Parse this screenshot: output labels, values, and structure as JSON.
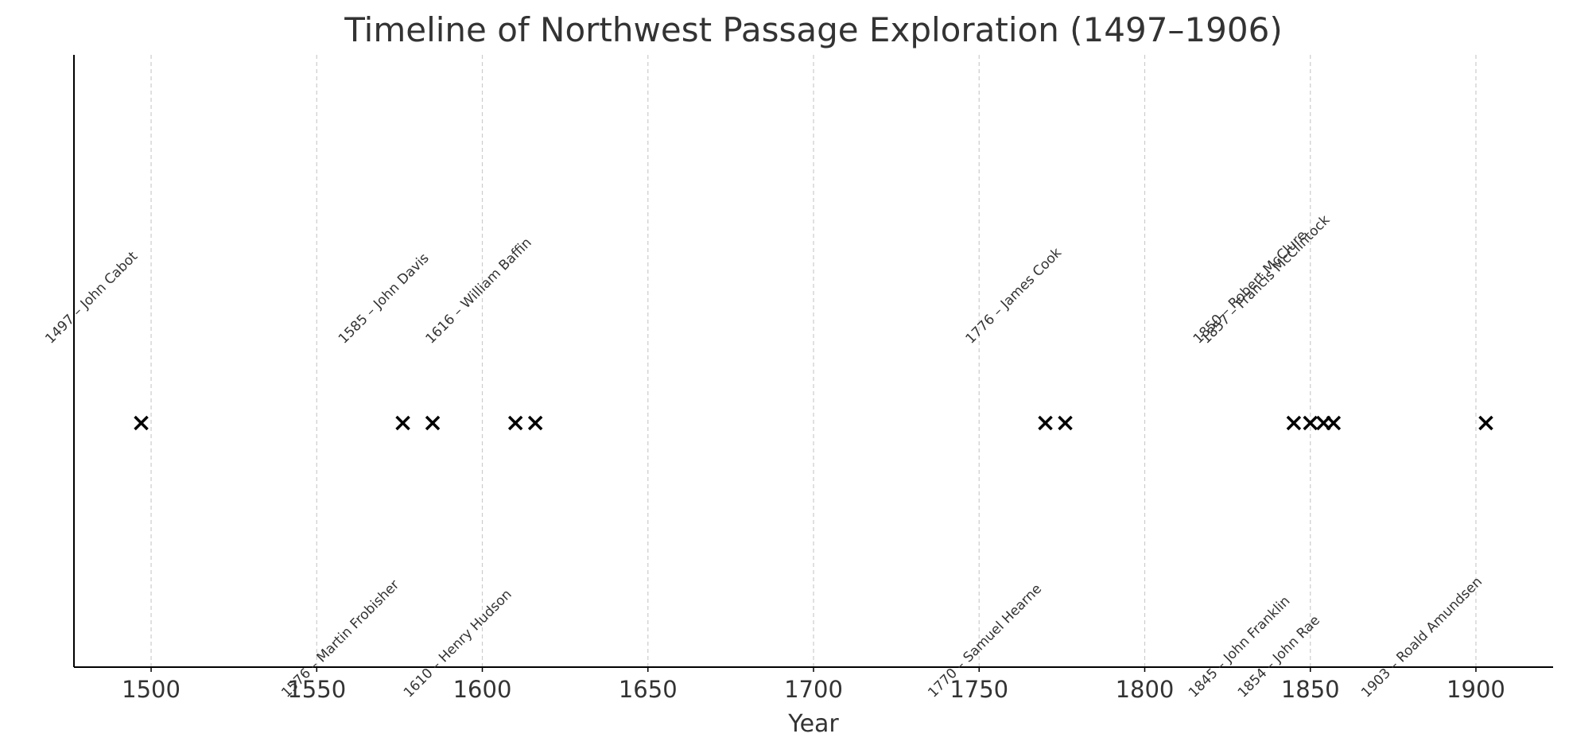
{
  "chart_data": {
    "type": "scatter",
    "title": "Timeline of Northwest Passage Exploration (1497–1906)",
    "x_label": "Year",
    "x": [
      1497,
      1576,
      1585,
      1610,
      1616,
      1770,
      1776,
      1845,
      1850,
      1854,
      1857,
      1903
    ],
    "labels": [
      "1497 – John Cabot",
      "1576 – Martin Frobisher",
      "1585 – John Davis",
      "1610 – Henry Hudson",
      "1616 – William Baffin",
      "1770 – Samuel Hearne",
      "1776 – James Cook",
      "1845 – John Franklin",
      "1850 – Robert McClure",
      "1854 – John Rae",
      "1857 – Francis McClintock",
      "1903 – Roald Amundsen"
    ],
    "color": "#000000",
    "marker": "x",
    "xlim": [
      1476.7,
      1923.3
    ],
    "xticks": [
      1500,
      1550,
      1600,
      1650,
      1700,
      1750,
      1800,
      1850,
      1900
    ],
    "grid": true
  }
}
